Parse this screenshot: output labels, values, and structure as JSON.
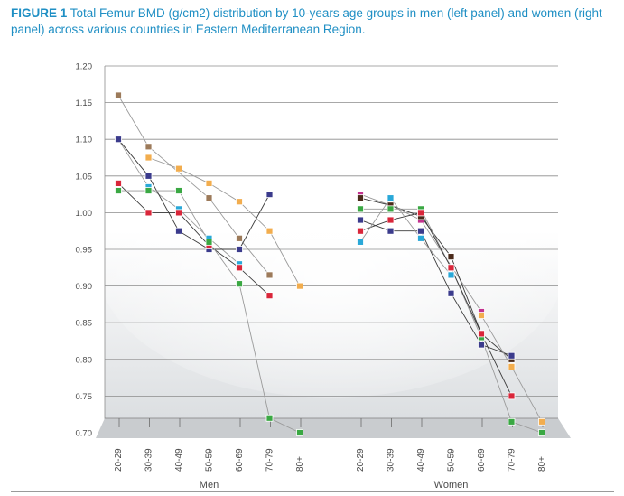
{
  "caption": {
    "label": "FIGURE 1",
    "text": "Total Femur BMD (g/cm2) distribution by 10-years age groups in men (left panel) and women (right panel) across various countries in Eastern Mediterranean Region."
  },
  "chart_data": {
    "type": "line",
    "title": "Total Femur BMD (g/cm2) distribution by 10-years age groups in men (left panel) and women (right panel) across various countries in Eastern Mediterranean Region.",
    "ylabel": "",
    "ylim": [
      0.7,
      1.2
    ],
    "yticks": [
      "0.70",
      "0.75",
      "0.80",
      "0.85",
      "0.90",
      "0.95",
      "1.00",
      "1.05",
      "1.10",
      "1.15",
      "1.20"
    ],
    "grid": true,
    "panels": [
      {
        "name": "Men",
        "categories": [
          "20-29",
          "30-39",
          "40-49",
          "50-59",
          "60-69",
          "70-79",
          "80+"
        ],
        "series": [
          {
            "name": "brown",
            "color": "#9c7a5a",
            "values": [
              1.16,
              1.09,
              null,
              1.02,
              0.965,
              0.915,
              null
            ]
          },
          {
            "name": "orange",
            "color": "#f2ad4e",
            "values": [
              null,
              1.075,
              1.06,
              1.04,
              1.015,
              0.975,
              0.9
            ]
          },
          {
            "name": "cyan",
            "color": "#29a8d8",
            "values": [
              1.1,
              1.035,
              1.005,
              0.965,
              0.93,
              null,
              null
            ]
          },
          {
            "name": "navy",
            "color": "#3b3b8c",
            "values": [
              1.1,
              1.05,
              0.975,
              0.95,
              0.95,
              1.025,
              null
            ]
          },
          {
            "name": "red",
            "color": "#d9263a",
            "values": [
              1.04,
              1.0,
              1.0,
              0.955,
              0.925,
              0.887,
              null
            ]
          },
          {
            "name": "green",
            "color": "#3aa843",
            "values": [
              1.03,
              1.03,
              1.03,
              0.96,
              0.903,
              0.72,
              0.7
            ]
          }
        ]
      },
      {
        "name": "Women",
        "categories": [
          "20-29",
          "30-39",
          "40-49",
          "50-59",
          "60-69",
          "70-79",
          "80+"
        ],
        "series": [
          {
            "name": "magenta",
            "color": "#c2328e",
            "values": [
              1.025,
              1.01,
              0.99,
              null,
              0.865,
              null,
              null
            ]
          },
          {
            "name": "dark-brown",
            "color": "#4a2a1a",
            "values": [
              1.02,
              1.01,
              0.995,
              0.94,
              0.835,
              0.8,
              null
            ]
          },
          {
            "name": "green",
            "color": "#3aa843",
            "values": [
              1.005,
              1.005,
              1.005,
              0.925,
              0.83,
              0.715,
              0.7
            ]
          },
          {
            "name": "navy",
            "color": "#3b3b8c",
            "values": [
              0.99,
              0.975,
              0.975,
              0.89,
              0.82,
              0.805,
              null
            ]
          },
          {
            "name": "red",
            "color": "#d9263a",
            "values": [
              0.975,
              0.99,
              1.0,
              0.925,
              0.835,
              0.75,
              null
            ]
          },
          {
            "name": "cyan",
            "color": "#29a8d8",
            "values": [
              0.96,
              1.02,
              0.965,
              0.915,
              null,
              null,
              null
            ]
          },
          {
            "name": "orange",
            "color": "#f2ad4e",
            "values": [
              null,
              null,
              null,
              null,
              0.86,
              0.79,
              0.715
            ]
          }
        ]
      }
    ]
  }
}
